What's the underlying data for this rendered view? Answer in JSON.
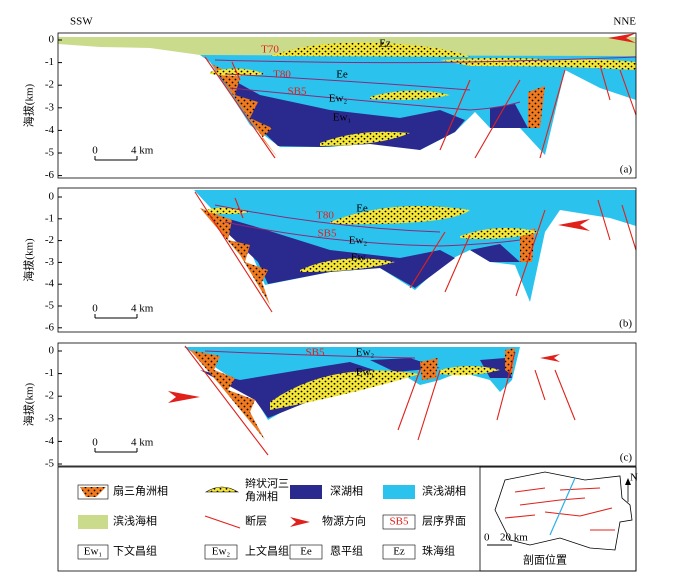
{
  "header": {
    "left": "SSW",
    "right": "NNE"
  },
  "panels": [
    {
      "label": "(a)",
      "y_axis_label": "海拔(km)",
      "ticks": [
        0,
        -1,
        -2,
        -3,
        -4,
        -5,
        -6
      ],
      "scale_bar": {
        "zero": "0",
        "length": "4 km"
      },
      "annotations": [
        "T70",
        "Ez",
        "T80",
        "Ee",
        "SB5",
        "Ew₂",
        "Ew₁"
      ]
    },
    {
      "label": "(b)",
      "y_axis_label": "海拔(km)",
      "ticks": [
        0,
        -1,
        -2,
        -3,
        -4,
        -5,
        -6
      ],
      "scale_bar": {
        "zero": "0",
        "length": "4 km"
      },
      "annotations": [
        "T80",
        "Ee",
        "SB5",
        "Ew₂",
        "Ew₁"
      ]
    },
    {
      "label": "(c)",
      "y_axis_label": "海拔(km)",
      "ticks": [
        0,
        -1,
        -2,
        -3,
        -4,
        -5
      ],
      "scale_bar": {
        "zero": "0",
        "length": "4 km"
      },
      "annotations": [
        "SB5",
        "Ew₂",
        "Ew₁"
      ]
    }
  ],
  "legend": [
    {
      "label": "扇三角洲相"
    },
    {
      "label": "辫状河三角洲相"
    },
    {
      "label": "深湖相"
    },
    {
      "label": "滨浅湖相"
    },
    {
      "label": "滨浅海相"
    },
    {
      "label": "断层"
    },
    {
      "label": "物源方向"
    },
    {
      "label": "层序界面",
      "symbol": "SB5"
    },
    {
      "label": "下文昌组",
      "symbol": "Ew₁"
    },
    {
      "label": "上文昌组",
      "symbol": "Ew₂"
    },
    {
      "label": "恩平组",
      "symbol": "Ee"
    },
    {
      "label": "珠海组",
      "symbol": "Ez"
    }
  ],
  "location_map": {
    "north": "N",
    "scale_zero": "0",
    "scale_length": "20 km",
    "caption": "剖面位置"
  }
}
